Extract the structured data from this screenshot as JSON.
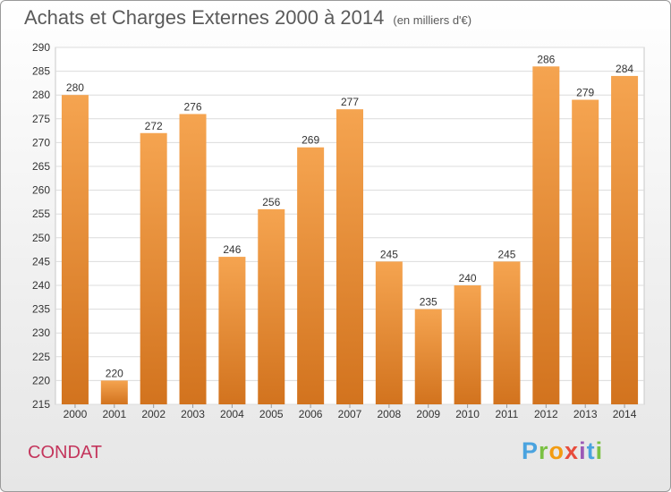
{
  "header": {
    "title": "Achats et Charges Externes 2000 à 2014",
    "subtitle": "(en milliers d'€)"
  },
  "footer": {
    "town": "CONDAT",
    "logo_text": "Proxiti"
  },
  "colors": {
    "bar_top": "#f5a450",
    "bar_bottom": "#d2731e",
    "grid": "#dcdcdc",
    "axis_text": "#333333",
    "town": "#c4355c"
  },
  "chart_data": {
    "type": "bar",
    "title": "Achats et Charges Externes 2000 à 2014",
    "subtitle": "(en milliers d'€)",
    "categories": [
      "2000",
      "2001",
      "2002",
      "2003",
      "2004",
      "2005",
      "2006",
      "2007",
      "2008",
      "2009",
      "2010",
      "2011",
      "2012",
      "2013",
      "2014"
    ],
    "values": [
      280,
      220,
      272,
      276,
      246,
      256,
      269,
      277,
      245,
      235,
      240,
      245,
      286,
      279,
      284
    ],
    "ylim": [
      215,
      290
    ],
    "yticks": [
      215,
      220,
      225,
      230,
      235,
      240,
      245,
      250,
      255,
      260,
      265,
      270,
      275,
      280,
      285,
      290
    ],
    "grid": true,
    "data_labels": true
  }
}
